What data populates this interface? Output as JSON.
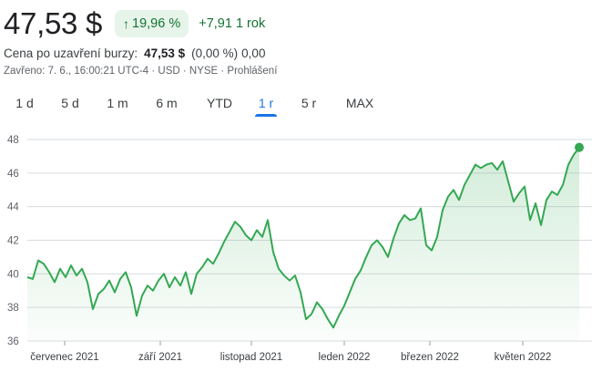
{
  "quote": {
    "price": "47,53 $",
    "change_pct": "19,96 %",
    "change_abs": "+7,91 1 rok",
    "arrow": "↑"
  },
  "after_hours": {
    "label": "Cena po uzavření burzy:",
    "price": "47,53 $",
    "pct": "(0,00 %)",
    "abs": "0,00"
  },
  "meta": "Zavřeno: 7. 6., 16:00:21 UTC-4 · USD · NYSE · Prohlášení",
  "range_tabs": [
    {
      "label": "1 d",
      "active": false
    },
    {
      "label": "5 d",
      "active": false
    },
    {
      "label": "1 m",
      "active": false
    },
    {
      "label": "6 m",
      "active": false
    },
    {
      "label": "YTD",
      "active": false
    },
    {
      "label": "1 r",
      "active": true
    },
    {
      "label": "5 r",
      "active": false
    },
    {
      "label": "MAX",
      "active": false
    }
  ],
  "colors": {
    "line": "#34a853",
    "positive": "#137333",
    "badge_bg": "#e6f4ea",
    "active_tab": "#1a73e8",
    "grid": "#dadce0"
  },
  "chart_data": {
    "type": "line",
    "ylim": [
      36,
      48
    ],
    "yticks": [
      "48",
      "46",
      "44",
      "42",
      "40",
      "38",
      "36"
    ],
    "xticks": [
      "červenec 2021",
      "září 2021",
      "listopad 2021",
      "leden 2022",
      "březen 2022",
      "květen 2022"
    ],
    "grid": true,
    "series": [
      {
        "values": [
          39.8,
          39.7,
          40.8,
          40.6,
          40.1,
          39.5,
          40.3,
          39.8,
          40.5,
          39.9,
          40.3,
          39.5,
          37.9,
          38.8,
          39.1,
          39.6,
          38.9,
          39.7,
          40.1,
          39.2,
          37.5,
          38.7,
          39.3,
          39.0,
          39.6,
          40.0,
          39.2,
          39.8,
          39.3,
          40.1,
          38.8,
          40.0,
          40.4,
          40.9,
          40.6,
          41.2,
          41.9,
          42.5,
          43.1,
          42.8,
          42.3,
          42.0,
          42.6,
          42.2,
          43.2,
          41.3,
          40.3,
          39.9,
          39.6,
          39.9,
          38.9,
          37.3,
          37.6,
          38.3,
          37.9,
          37.3,
          36.8,
          37.5,
          38.1,
          38.9,
          39.7,
          40.2,
          41.0,
          41.7,
          42.0,
          41.6,
          41.0,
          42.1,
          43.0,
          43.5,
          43.2,
          43.3,
          43.9,
          41.7,
          41.4,
          42.2,
          43.8,
          44.6,
          45.0,
          44.4,
          45.3,
          45.9,
          46.5,
          46.3,
          46.5,
          46.6,
          46.2,
          46.7,
          45.5,
          44.3,
          44.8,
          45.2,
          43.2,
          44.2,
          42.9,
          44.4,
          44.9,
          44.7,
          45.3,
          46.5,
          47.1,
          47.53
        ]
      }
    ],
    "last_value": 47.53
  }
}
